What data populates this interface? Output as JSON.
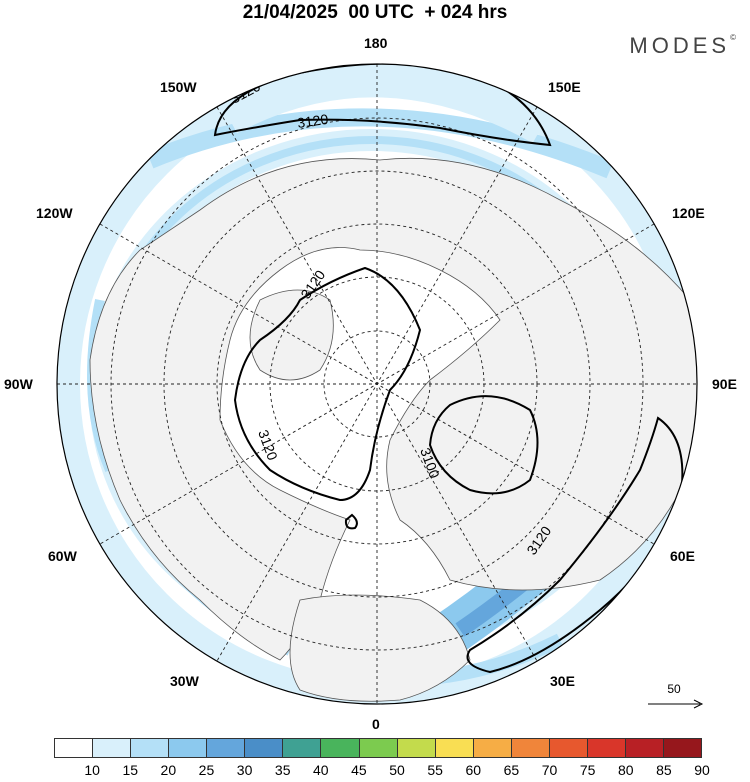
{
  "title": "21/04/2025  00 UTC  + 024 hrs",
  "brand": "MODES",
  "brand_mark": "©",
  "longitude_labels": [
    {
      "key": "180",
      "text": "180"
    },
    {
      "key": "150e",
      "text": "150E"
    },
    {
      "key": "150w",
      "text": "150W"
    },
    {
      "key": "120w",
      "text": "120W"
    },
    {
      "key": "120e",
      "text": "120E"
    },
    {
      "key": "90w",
      "text": "90W"
    },
    {
      "key": "90e",
      "text": "90E"
    },
    {
      "key": "60w",
      "text": "60W"
    },
    {
      "key": "60e",
      "text": "60E"
    },
    {
      "key": "30w",
      "text": "30W"
    },
    {
      "key": "30e",
      "text": "30E"
    },
    {
      "key": "0",
      "text": "0"
    }
  ],
  "contour_labels": [
    "3120",
    "3120",
    "3120",
    "3120",
    "3100",
    "3120"
  ],
  "reference_vector": "50",
  "colorbar": {
    "ticks": [
      "10",
      "15",
      "20",
      "25",
      "30",
      "35",
      "40",
      "45",
      "50",
      "55",
      "60",
      "65",
      "70",
      "75",
      "80",
      "85",
      "90"
    ],
    "colors": [
      "#ffffff",
      "#d9f0fb",
      "#b4e0f7",
      "#8cc9ee",
      "#64a6dc",
      "#4a8ec8",
      "#3fa193",
      "#49b45c",
      "#7ccb4f",
      "#c3db4c",
      "#f9de53",
      "#f6ad45",
      "#f0853a",
      "#e7582e",
      "#d9362a",
      "#b82025",
      "#96171c"
    ]
  },
  "colors": {
    "land": "#f2f2f2",
    "jet_weak": "#d9f0fb",
    "jet_mid": "#b4e0f7",
    "jet_strong": "#8cc9ee",
    "jet_core": "#64a6dc"
  }
}
